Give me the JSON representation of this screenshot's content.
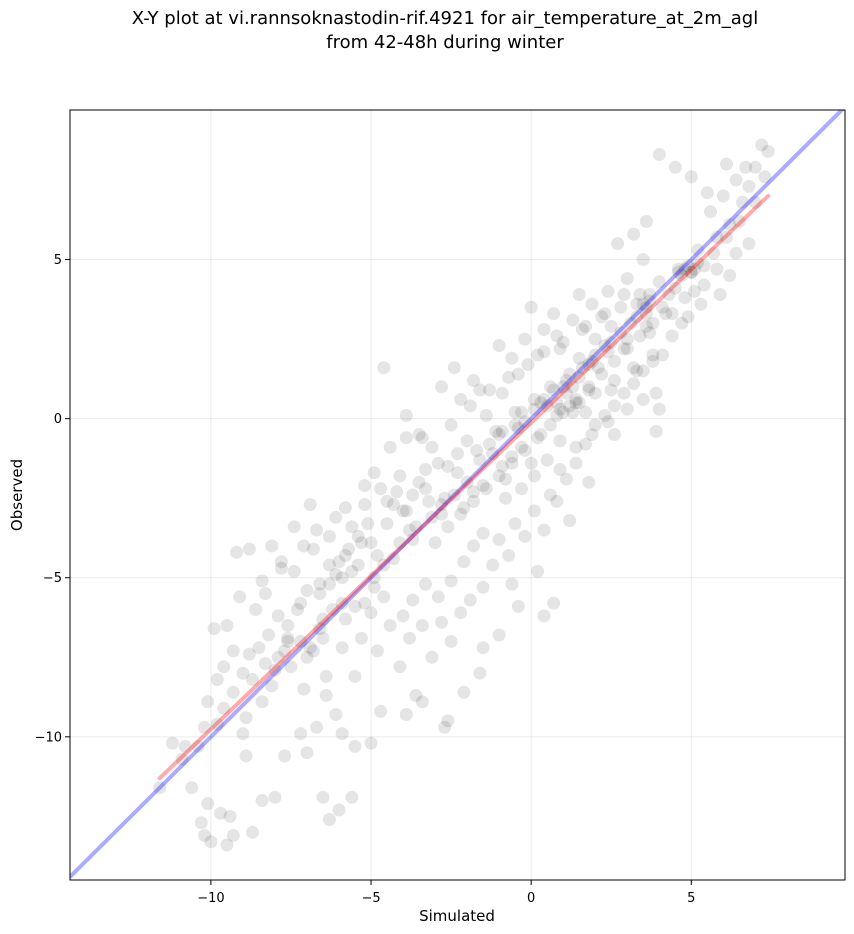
{
  "chart_data": {
    "type": "scatter",
    "title": "X-Y plot at vi.rannsoknastodin-rif.4921 for air_temperature_at_2m_agl",
    "subtitle": "from 42-48h during winter",
    "xlabel": "Simulated",
    "ylabel": "Observed",
    "xlim": [
      -14.4,
      9.8
    ],
    "ylim": [
      -14.5,
      9.7
    ],
    "xticks": [
      -10,
      -5,
      0,
      5
    ],
    "xtick_labels": [
      "−10",
      "−5",
      "0",
      "5"
    ],
    "yticks": [
      -10,
      -5,
      0,
      5
    ],
    "ytick_labels": [
      "−10",
      "−5",
      "0",
      "5"
    ],
    "grid": true,
    "point_color": "#000000",
    "point_alpha": 0.1,
    "identity_line": {
      "color": "#0000ff",
      "alpha": 0.33,
      "from": [
        -14.4,
        -14.4
      ],
      "to": [
        9.8,
        9.8
      ]
    },
    "fit_line": {
      "color": "#ff0000",
      "alpha": 0.33,
      "from": [
        -11.6,
        -11.3
      ],
      "to": [
        7.4,
        7.0
      ]
    },
    "points": [
      [
        -11.6,
        -11.6
      ],
      [
        -11.2,
        -10.2
      ],
      [
        -10.9,
        -10.7
      ],
      [
        -10.6,
        -11.6
      ],
      [
        -10.3,
        -12.7
      ],
      [
        -10.1,
        -12.1
      ],
      [
        -10.0,
        -13.3
      ],
      [
        -9.7,
        -12.4
      ],
      [
        -9.5,
        -13.4
      ],
      [
        -9.3,
        -13.1
      ],
      [
        -10.4,
        -10.3
      ],
      [
        -10.1,
        -8.9
      ],
      [
        -9.8,
        -9.6
      ],
      [
        -9.5,
        -6.5
      ],
      [
        -9.3,
        -7.3
      ],
      [
        -9.0,
        -8.0
      ],
      [
        -9.2,
        -4.2
      ],
      [
        -8.8,
        -4.1
      ],
      [
        -8.6,
        -6.0
      ],
      [
        -8.3,
        -5.5
      ],
      [
        -8.1,
        -4.0
      ],
      [
        -7.9,
        -6.2
      ],
      [
        -7.6,
        -7.0
      ],
      [
        -7.4,
        -4.8
      ],
      [
        -7.2,
        -5.8
      ],
      [
        -7.0,
        -7.5
      ],
      [
        -6.8,
        -4.1
      ],
      [
        -6.6,
        -5.2
      ],
      [
        -6.5,
        -6.3
      ],
      [
        -6.3,
        -3.7
      ],
      [
        -6.1,
        -4.9
      ],
      [
        -5.9,
        -5.8
      ],
      [
        -5.8,
        -4.3
      ],
      [
        -5.6,
        -3.4
      ],
      [
        -5.4,
        -4.6
      ],
      [
        -5.2,
        -2.7
      ],
      [
        -5.0,
        -3.9
      ],
      [
        -4.9,
        -5.3
      ],
      [
        -4.7,
        -2.2
      ],
      [
        -4.5,
        -3.3
      ],
      [
        -4.3,
        -4.4
      ],
      [
        -4.1,
        -1.8
      ],
      [
        -3.9,
        -2.9
      ],
      [
        -3.7,
        -3.8
      ],
      [
        -3.5,
        -0.5
      ],
      [
        -3.3,
        -2.2
      ],
      [
        -3.1,
        -3.1
      ],
      [
        -2.9,
        -1.4
      ],
      [
        -2.7,
        -2.5
      ],
      [
        -2.5,
        -0.2
      ],
      [
        -2.3,
        -1.7
      ],
      [
        -2.1,
        -2.8
      ],
      [
        -1.9,
        0.4
      ],
      [
        -1.7,
        -1.0
      ],
      [
        -1.5,
        -2.1
      ],
      [
        -1.3,
        0.9
      ],
      [
        -1.1,
        -0.4
      ],
      [
        -0.9,
        -1.5
      ],
      [
        -0.7,
        1.3
      ],
      [
        -0.5,
        0.2
      ],
      [
        -0.3,
        -0.9
      ],
      [
        -0.1,
        1.7
      ],
      [
        0.1,
        0.6
      ],
      [
        0.3,
        -0.5
      ],
      [
        0.4,
        2.1
      ],
      [
        0.6,
        1.0
      ],
      [
        0.8,
        0.1
      ],
      [
        1.0,
        2.4
      ],
      [
        1.2,
        1.4
      ],
      [
        1.4,
        0.5
      ],
      [
        1.6,
        2.8
      ],
      [
        1.8,
        1.7
      ],
      [
        2.0,
        0.8
      ],
      [
        2.2,
        3.2
      ],
      [
        2.4,
        2.1
      ],
      [
        2.6,
        1.2
      ],
      [
        2.8,
        3.5
      ],
      [
        3.0,
        2.5
      ],
      [
        3.2,
        1.6
      ],
      [
        3.4,
        3.9
      ],
      [
        3.6,
        2.9
      ],
      [
        3.8,
        2.0
      ],
      [
        4.0,
        4.3
      ],
      [
        4.2,
        3.3
      ],
      [
        4.4,
        2.6
      ],
      [
        4.6,
        4.7
      ],
      [
        4.8,
        3.8
      ],
      [
        5.0,
        4.6
      ],
      [
        5.2,
        5.3
      ],
      [
        5.4,
        4.2
      ],
      [
        5.6,
        6.5
      ],
      [
        5.8,
        5.7
      ],
      [
        6.0,
        7.0
      ],
      [
        6.2,
        6.1
      ],
      [
        6.4,
        7.5
      ],
      [
        6.6,
        6.8
      ],
      [
        6.8,
        7.3
      ],
      [
        7.0,
        7.9
      ],
      [
        7.2,
        8.6
      ],
      [
        7.4,
        8.4
      ],
      [
        4.0,
        8.3
      ],
      [
        4.5,
        7.9
      ],
      [
        5.0,
        7.6
      ],
      [
        3.6,
        6.2
      ],
      [
        3.2,
        5.8
      ],
      [
        2.7,
        5.5
      ],
      [
        1.5,
        3.9
      ],
      [
        0.7,
        3.3
      ],
      [
        0.0,
        3.5
      ],
      [
        -1.0,
        2.3
      ],
      [
        -2.4,
        1.6
      ],
      [
        -4.6,
        1.6
      ],
      [
        -1.8,
        1.2
      ],
      [
        -3.9,
        0.1
      ],
      [
        -3.4,
        -0.6
      ],
      [
        -2.0,
        -0.7
      ],
      [
        -0.6,
        -1.2
      ],
      [
        0.6,
        -2.4
      ],
      [
        1.2,
        -3.2
      ],
      [
        1.8,
        -2.0
      ],
      [
        2.6,
        -0.5
      ],
      [
        3.9,
        -0.4
      ],
      [
        4.0,
        0.3
      ],
      [
        3.9,
        0.8
      ],
      [
        0.2,
        -4.8
      ],
      [
        -0.6,
        -5.2
      ],
      [
        -0.4,
        -5.9
      ],
      [
        0.4,
        -6.2
      ],
      [
        0.7,
        -5.8
      ],
      [
        -1.0,
        -6.8
      ],
      [
        -1.5,
        -7.2
      ],
      [
        -1.6,
        -8.0
      ],
      [
        -2.1,
        -8.6
      ],
      [
        -2.7,
        -9.7
      ],
      [
        -2.6,
        -9.5
      ],
      [
        -3.4,
        -8.9
      ],
      [
        -3.6,
        -8.7
      ],
      [
        -3.9,
        -9.3
      ],
      [
        -4.7,
        -9.2
      ],
      [
        -5.0,
        -10.2
      ],
      [
        -5.5,
        -10.3
      ],
      [
        -5.9,
        -9.9
      ],
      [
        -6.1,
        -9.3
      ],
      [
        -6.4,
        -8.7
      ],
      [
        -6.7,
        -9.7
      ],
      [
        -7.0,
        -10.5
      ],
      [
        -7.2,
        -9.9
      ],
      [
        -7.7,
        -10.6
      ],
      [
        -8.0,
        -11.9
      ],
      [
        -8.4,
        -12.0
      ],
      [
        -6.5,
        -11.9
      ],
      [
        -6.0,
        -12.3
      ],
      [
        -5.6,
        -11.9
      ],
      [
        -6.3,
        -12.6
      ],
      [
        -8.7,
        -13.0
      ],
      [
        -9.4,
        -12.5
      ],
      [
        -10.2,
        -13.1
      ],
      [
        -8.9,
        -10.6
      ],
      [
        -9.0,
        -9.9
      ],
      [
        -9.8,
        -8.2
      ],
      [
        -9.1,
        -5.6
      ],
      [
        -8.4,
        -5.1
      ],
      [
        -8.0,
        -7.9
      ],
      [
        -7.5,
        -7.8
      ],
      [
        -7.1,
        -8.5
      ],
      [
        -6.9,
        -7.2
      ],
      [
        -6.6,
        -6.6
      ],
      [
        -6.4,
        -8.1
      ],
      [
        -5.9,
        -7.2
      ],
      [
        -5.5,
        -8.1
      ],
      [
        -5.3,
        -6.9
      ],
      [
        -4.8,
        -7.3
      ],
      [
        -4.4,
        -6.5
      ],
      [
        -4.1,
        -7.8
      ],
      [
        -3.8,
        -6.9
      ],
      [
        -3.4,
        -6.5
      ],
      [
        -3.1,
        -7.5
      ],
      [
        -2.8,
        -6.4
      ],
      [
        -2.5,
        -7.0
      ],
      [
        -2.2,
        -6.1
      ],
      [
        -1.9,
        -5.7
      ],
      [
        -1.5,
        -5.3
      ],
      [
        -1.2,
        -4.6
      ],
      [
        -1.0,
        -3.8
      ],
      [
        -0.7,
        -4.3
      ],
      [
        -0.5,
        -3.3
      ],
      [
        -0.2,
        -3.7
      ],
      [
        0.1,
        -2.9
      ],
      [
        0.4,
        -3.5
      ],
      [
        0.8,
        -2.6
      ],
      [
        1.1,
        -1.9
      ],
      [
        1.4,
        -1.4
      ],
      [
        1.7,
        -0.8
      ],
      [
        2.0,
        -0.2
      ],
      [
        2.3,
        0.1
      ],
      [
        2.6,
        0.4
      ],
      [
        2.9,
        0.8
      ],
      [
        3.2,
        1.1
      ],
      [
        3.5,
        1.5
      ],
      [
        3.8,
        1.8
      ],
      [
        -6.9,
        -2.7
      ],
      [
        -7.4,
        -3.4
      ],
      [
        -7.8,
        -4.7
      ],
      [
        -6.3,
        -4.6
      ],
      [
        -5.8,
        -2.8
      ],
      [
        -5.3,
        -3.9
      ],
      [
        -4.8,
        -4.3
      ],
      [
        -4.3,
        -2.7
      ],
      [
        -3.8,
        -3.5
      ],
      [
        -3.3,
        -1.6
      ],
      [
        -2.8,
        -2.7
      ],
      [
        -2.3,
        -1.1
      ],
      [
        -1.8,
        -2.3
      ],
      [
        -1.3,
        -0.8
      ],
      [
        -0.8,
        -1.9
      ],
      [
        -0.4,
        -0.3
      ],
      [
        0.0,
        -1.4
      ],
      [
        0.5,
        0.4
      ],
      [
        0.9,
        -0.7
      ],
      [
        1.3,
        1.0
      ],
      [
        1.7,
        0.2
      ],
      [
        2.1,
        1.6
      ],
      [
        2.5,
        0.9
      ],
      [
        2.9,
        2.2
      ],
      [
        3.3,
        1.5
      ],
      [
        3.7,
        2.7
      ],
      [
        4.1,
        2.0
      ],
      [
        4.4,
        3.3
      ],
      [
        4.7,
        3.0
      ],
      [
        5.1,
        4.0
      ],
      [
        5.4,
        4.8
      ],
      [
        5.7,
        5.2
      ],
      [
        6.1,
        5.7
      ],
      [
        6.5,
        6.2
      ],
      [
        6.8,
        5.5
      ],
      [
        7.0,
        6.8
      ],
      [
        7.3,
        7.6
      ],
      [
        6.1,
        8.0
      ],
      [
        5.5,
        7.1
      ],
      [
        6.7,
        7.9
      ],
      [
        -1.4,
        0.1
      ],
      [
        -0.9,
        0.8
      ],
      [
        -0.4,
        1.4
      ],
      [
        0.2,
        2.0
      ],
      [
        0.8,
        2.6
      ],
      [
        1.3,
        3.1
      ],
      [
        1.9,
        3.6
      ],
      [
        2.4,
        4.0
      ],
      [
        3.0,
        4.4
      ],
      [
        3.5,
        5.0
      ],
      [
        -3.0,
        -3.9
      ],
      [
        -2.6,
        -3.4
      ],
      [
        -2.2,
        -3.0
      ],
      [
        -1.8,
        -2.6
      ],
      [
        -1.4,
        -2.2
      ],
      [
        -1.0,
        -1.8
      ],
      [
        -0.6,
        -1.4
      ],
      [
        -0.2,
        -1.0
      ],
      [
        0.2,
        -0.6
      ],
      [
        0.6,
        -0.2
      ],
      [
        1.0,
        0.2
      ],
      [
        1.4,
        0.6
      ],
      [
        1.8,
        1.0
      ],
      [
        2.2,
        1.4
      ],
      [
        2.6,
        1.8
      ],
      [
        3.0,
        2.2
      ],
      [
        3.4,
        2.6
      ],
      [
        3.8,
        3.0
      ],
      [
        3.7,
        3.7
      ],
      [
        3.6,
        3.5
      ],
      [
        3.7,
        3.9
      ],
      [
        3.5,
        3.6
      ],
      [
        3.6,
        3.3
      ],
      [
        3.3,
        3.2
      ],
      [
        4.6,
        4.6
      ],
      [
        4.8,
        4.7
      ],
      [
        5.0,
        4.6
      ],
      [
        4.9,
        4.8
      ],
      [
        5.1,
        4.7
      ],
      [
        4.7,
        4.5
      ],
      [
        -1.0,
        -0.5
      ],
      [
        -0.9,
        -0.4
      ],
      [
        -0.5,
        -0.2
      ],
      [
        -0.3,
        0.2
      ],
      [
        0.1,
        0.3
      ],
      [
        0.4,
        0.6
      ],
      [
        1.1,
        0.8
      ],
      [
        1.0,
        1.0
      ],
      [
        1.5,
        1.3
      ],
      [
        1.6,
        1.6
      ],
      [
        1.9,
        1.8
      ],
      [
        2.0,
        2.0
      ],
      [
        2.3,
        2.3
      ],
      [
        2.5,
        2.4
      ],
      [
        1.2,
        0.4
      ],
      [
        1.5,
        0.5
      ],
      [
        1.8,
        0.9
      ],
      [
        0.8,
        0.5
      ],
      [
        0.9,
        0.3
      ],
      [
        1.3,
        0.2
      ],
      [
        -4.5,
        -2.6
      ],
      [
        -4.2,
        -2.3
      ],
      [
        -4.0,
        -2.9
      ],
      [
        -3.7,
        -2.4
      ],
      [
        -3.5,
        -2.0
      ],
      [
        -3.2,
        -2.6
      ],
      [
        -5.1,
        -3.3
      ],
      [
        -5.4,
        -3.7
      ],
      [
        -5.7,
        -4.1
      ],
      [
        -6.0,
        -4.5
      ],
      [
        -6.3,
        -5.2
      ],
      [
        -6.6,
        -5.5
      ],
      [
        -5.9,
        -5.0
      ],
      [
        -5.6,
        -4.8
      ],
      [
        -7.0,
        -5.4
      ],
      [
        -7.3,
        -6.0
      ],
      [
        -7.6,
        -6.5
      ],
      [
        -8.2,
        -6.8
      ],
      [
        -8.5,
        -7.2
      ],
      [
        -8.8,
        -7.4
      ],
      [
        -2.0,
        -2.0
      ],
      [
        -1.6,
        -1.3
      ],
      [
        -1.2,
        -1.1
      ],
      [
        -2.4,
        -2.4
      ],
      [
        -2.8,
        -3.0
      ],
      [
        -3.6,
        -3.4
      ],
      [
        -4.1,
        -3.9
      ],
      [
        -4.6,
        -4.6
      ],
      [
        -4.9,
        -5.0
      ],
      [
        -5.2,
        -5.8
      ],
      [
        -5.5,
        -5.9
      ],
      [
        -5.8,
        -6.3
      ],
      [
        -6.2,
        -6.0
      ],
      [
        -6.5,
        -6.9
      ],
      [
        -6.8,
        -7.3
      ],
      [
        -7.2,
        -7.0
      ],
      [
        -7.7,
        -7.3
      ],
      [
        -8.1,
        -8.4
      ],
      [
        -8.4,
        -8.9
      ],
      [
        -8.9,
        -9.4
      ],
      [
        -9.6,
        -9.1
      ],
      [
        -10.2,
        -9.7
      ],
      [
        -10.8,
        -10.3
      ],
      [
        -9.9,
        -6.6
      ],
      [
        -9.6,
        -7.8
      ],
      [
        -9.3,
        -8.6
      ],
      [
        -8.7,
        -8.2
      ],
      [
        -8.3,
        -7.7
      ],
      [
        -7.9,
        -7.5
      ],
      [
        -7.6,
        -6.9
      ],
      [
        -0.2,
        -0.1
      ],
      [
        0.3,
        0.5
      ],
      [
        0.7,
        0.9
      ],
      [
        1.1,
        1.2
      ],
      [
        1.5,
        1.9
      ],
      [
        2.0,
        2.5
      ],
      [
        2.5,
        2.9
      ],
      [
        2.8,
        2.7
      ],
      [
        3.1,
        3.0
      ],
      [
        3.3,
        3.6
      ],
      [
        4.1,
        3.5
      ],
      [
        4.3,
        3.9
      ],
      [
        4.5,
        4.1
      ],
      [
        5.2,
        4.9
      ],
      [
        5.8,
        4.7
      ],
      [
        6.4,
        5.2
      ],
      [
        5.9,
        3.9
      ],
      [
        6.2,
        4.5
      ],
      [
        5.3,
        3.6
      ],
      [
        4.9,
        3.2
      ],
      [
        -1.8,
        -4.0
      ],
      [
        -1.5,
        -3.6
      ],
      [
        -2.1,
        -4.5
      ],
      [
        -2.5,
        -5.1
      ],
      [
        -2.9,
        -5.6
      ],
      [
        -3.3,
        -5.2
      ],
      [
        -3.7,
        -5.7
      ],
      [
        -4.0,
        -6.2
      ],
      [
        -4.6,
        -5.6
      ],
      [
        -5.0,
        -6.1
      ],
      [
        -0.8,
        -2.5
      ],
      [
        -0.3,
        -2.2
      ],
      [
        0.1,
        -1.8
      ],
      [
        0.5,
        -1.3
      ],
      [
        0.9,
        -1.6
      ],
      [
        1.4,
        -0.9
      ],
      [
        1.9,
        -0.5
      ],
      [
        2.4,
        -0.1
      ],
      [
        3.0,
        0.3
      ],
      [
        3.5,
        0.6
      ],
      [
        -2.8,
        1.0
      ],
      [
        -2.2,
        0.6
      ],
      [
        -1.6,
        0.9
      ],
      [
        -0.6,
        1.9
      ],
      [
        -0.2,
        2.5
      ],
      [
        0.4,
        2.8
      ],
      [
        0.9,
        2.2
      ],
      [
        1.7,
        2.9
      ],
      [
        2.3,
        3.3
      ],
      [
        2.9,
        3.9
      ],
      [
        -4.4,
        -0.9
      ],
      [
        -3.9,
        -0.6
      ],
      [
        -3.1,
        -0.9
      ],
      [
        -2.6,
        -1.5
      ],
      [
        -4.9,
        -1.7
      ],
      [
        -5.2,
        -2.1
      ],
      [
        -6.1,
        -3.1
      ],
      [
        -6.7,
        -3.5
      ],
      [
        -7.1,
        -4.0
      ],
      [
        -7.8,
        -4.5
      ]
    ]
  }
}
